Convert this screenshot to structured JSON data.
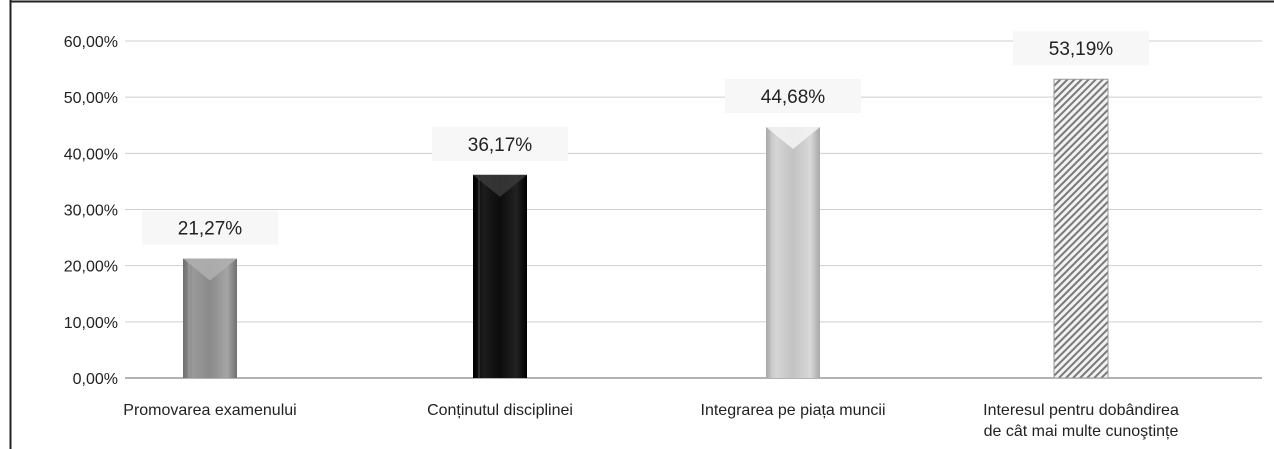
{
  "chart_data": {
    "type": "bar",
    "title": "",
    "xlabel": "",
    "ylabel": "",
    "ylim": [
      0,
      60
    ],
    "y_ticks": [
      0,
      10,
      20,
      30,
      40,
      50,
      60
    ],
    "y_tick_labels": [
      "0,00%",
      "10,00%",
      "20,00%",
      "30,00%",
      "40,00%",
      "50,00%",
      "60,00%"
    ],
    "grid": true,
    "legend": "none",
    "categories": [
      [
        "Promovarea examenului"
      ],
      [
        "Conținutul disciplinei"
      ],
      [
        "Integrarea pe piața muncii"
      ],
      [
        "Interesul pentru dobândirea",
        "de cât mai multe cunoştințe"
      ]
    ],
    "values": [
      21.27,
      36.17,
      44.68,
      53.19
    ],
    "data_labels": [
      "21,27%",
      "36,17%",
      "44,68%",
      "53,19%"
    ],
    "bar_styles": [
      "gray",
      "black",
      "light-gray",
      "hatched"
    ],
    "colors": {
      "gray": "#8a8a8a",
      "black": "#111111",
      "light_gray": "#c4c4c4",
      "hatch": "#7a7a7a",
      "grid": "#cfcfcf",
      "axis": "#9a9a9a",
      "border": "#222222"
    }
  }
}
